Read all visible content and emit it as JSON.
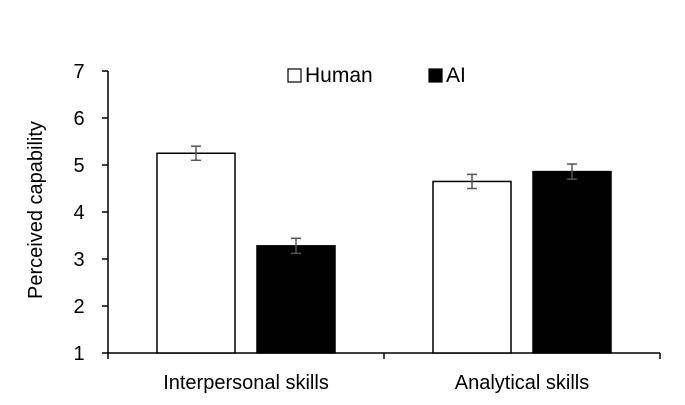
{
  "chart_data": {
    "type": "bar",
    "title": "",
    "xlabel": "",
    "ylabel": "Perceived capability",
    "categories": [
      "Interpersonal skills",
      "Analytical skills"
    ],
    "series": [
      {
        "name": "Human",
        "values": [
          5.25,
          4.65
        ],
        "errors": [
          0.15,
          0.15
        ],
        "color": "#ffffff"
      },
      {
        "name": "AI",
        "values": [
          3.28,
          4.86
        ],
        "errors": [
          0.16,
          0.16
        ],
        "color": "#000000"
      }
    ],
    "ylim": [
      1,
      7
    ],
    "yticks": [
      "1",
      "2",
      "3",
      "4",
      "5",
      "6",
      "7"
    ],
    "grid": false,
    "legend_position": "top-center"
  }
}
